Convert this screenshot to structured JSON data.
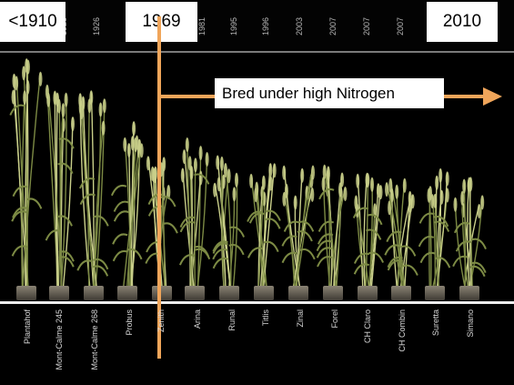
{
  "labels": {
    "start_year": "<1910",
    "divider_year": "1969",
    "end_year": "2010",
    "annotation": "Bred under high Nitrogen"
  },
  "years_top": [
    "1920",
    "1926",
    "1981",
    "1995",
    "1996",
    "2003",
    "2007",
    "2007",
    "2007"
  ],
  "varieties": [
    "Plantahof",
    "Mont-Calme 245",
    "Mont-Calme 268",
    "Probus",
    "Zenith",
    "Arina",
    "Runal",
    "Titlis",
    "Zinal",
    "Forel",
    "CH Claro",
    "CH Combin",
    "Suretta",
    "Simano"
  ],
  "colors": {
    "background": "#000000",
    "arrow": "#f0a55a",
    "plant_light": "#c9cf8a",
    "plant_dark": "#7c8a44",
    "pot": "#6b6457"
  }
}
